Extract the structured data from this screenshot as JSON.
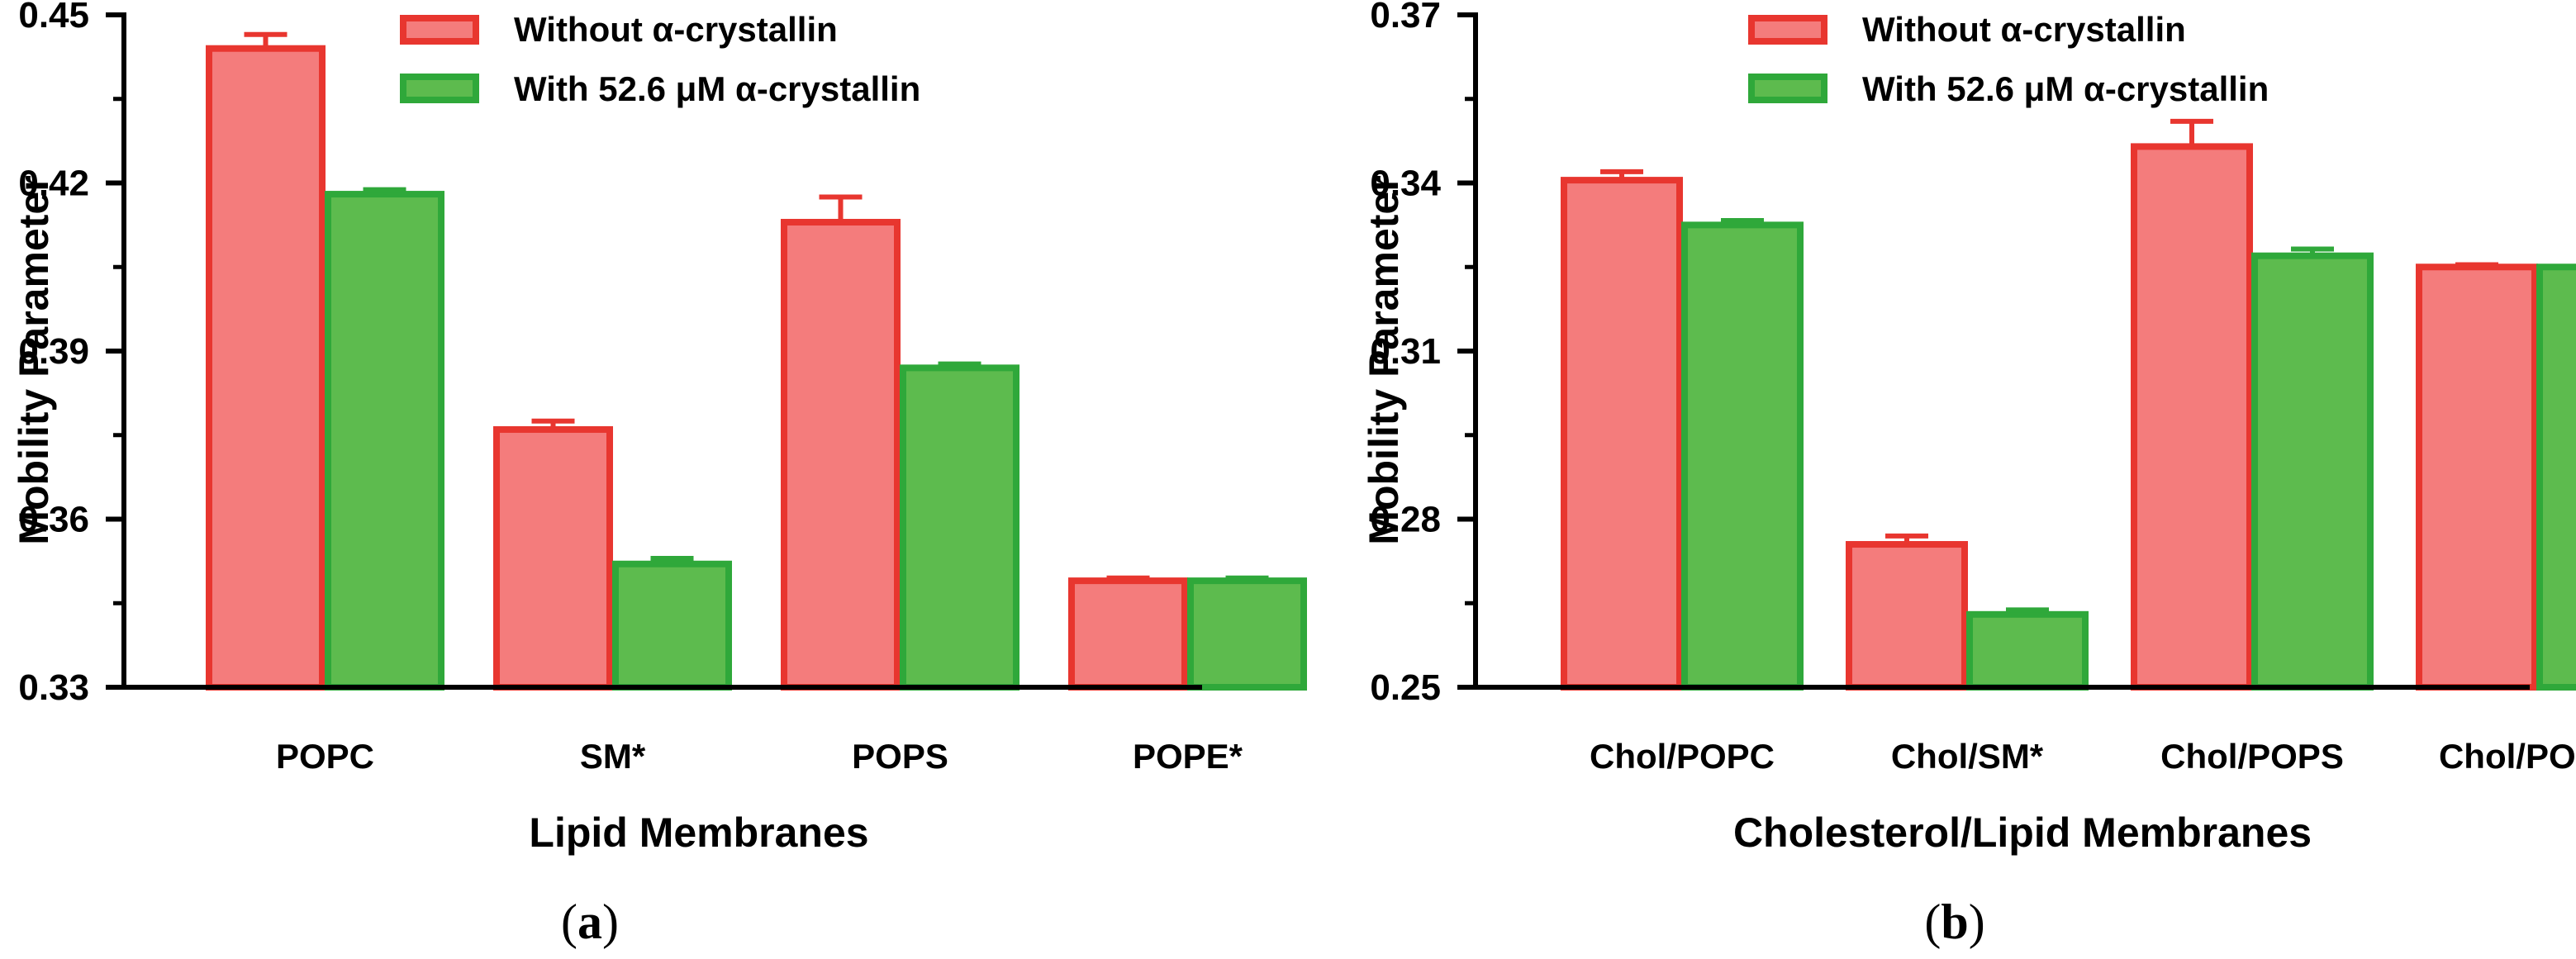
{
  "colors": {
    "without_fill": "#f47c7c",
    "without_stroke": "#e8362f",
    "with_fill": "#5dbb4e",
    "with_stroke": "#2fa83a",
    "axis": "#000000"
  },
  "chart_data": [
    {
      "type": "bar",
      "panel_label": {
        "open": "(",
        "letter": "a",
        "close": ")"
      },
      "xlabel": "Lipid Membranes",
      "ylabel": "Mobility Parameter",
      "ylim": [
        0.33,
        0.45
      ],
      "yticks": [
        0.33,
        0.36,
        0.39,
        0.42,
        0.45
      ],
      "ytick_labels": [
        "0.33",
        "0.36",
        "0.39",
        "0.42",
        "0.45"
      ],
      "categories": [
        "POPC",
        "SM*",
        "POPS",
        "POPE*"
      ],
      "legend_position": "top",
      "series": [
        {
          "name": "Without α-crystallin",
          "values": [
            0.444,
            0.376,
            0.413,
            0.349
          ],
          "errors": [
            0.0025,
            0.0015,
            0.0045,
            0.0005
          ]
        },
        {
          "name": "With 52.6 μM α-crystallin",
          "values": [
            0.418,
            0.352,
            0.387,
            0.349
          ],
          "errors": [
            0.0008,
            0.001,
            0.0007,
            0.0005
          ]
        }
      ]
    },
    {
      "type": "bar",
      "panel_label": {
        "open": "(",
        "letter": "b",
        "close": ")"
      },
      "xlabel": "Cholesterol/Lipid Membranes",
      "ylabel": "Mobility Parameter",
      "ylim": [
        0.25,
        0.37
      ],
      "yticks": [
        0.25,
        0.28,
        0.31,
        0.34,
        0.37
      ],
      "ytick_labels": [
        "0.25",
        "0.28",
        "0.31",
        "0.34",
        "0.37"
      ],
      "categories": [
        "Chol/POPC",
        "Chol/SM*",
        "Chol/POPS",
        "Chol/POPE*"
      ],
      "legend_position": "top",
      "series": [
        {
          "name": "Without α-crystallin",
          "values": [
            0.3405,
            0.2755,
            0.3465,
            0.325
          ],
          "errors": [
            0.0015,
            0.0015,
            0.0045,
            0.0004
          ]
        },
        {
          "name": "With 52.6 μM α-crystallin",
          "values": [
            0.3325,
            0.263,
            0.327,
            0.325
          ],
          "errors": [
            0.0008,
            0.0008,
            0.0012,
            0.0004
          ]
        }
      ]
    }
  ]
}
